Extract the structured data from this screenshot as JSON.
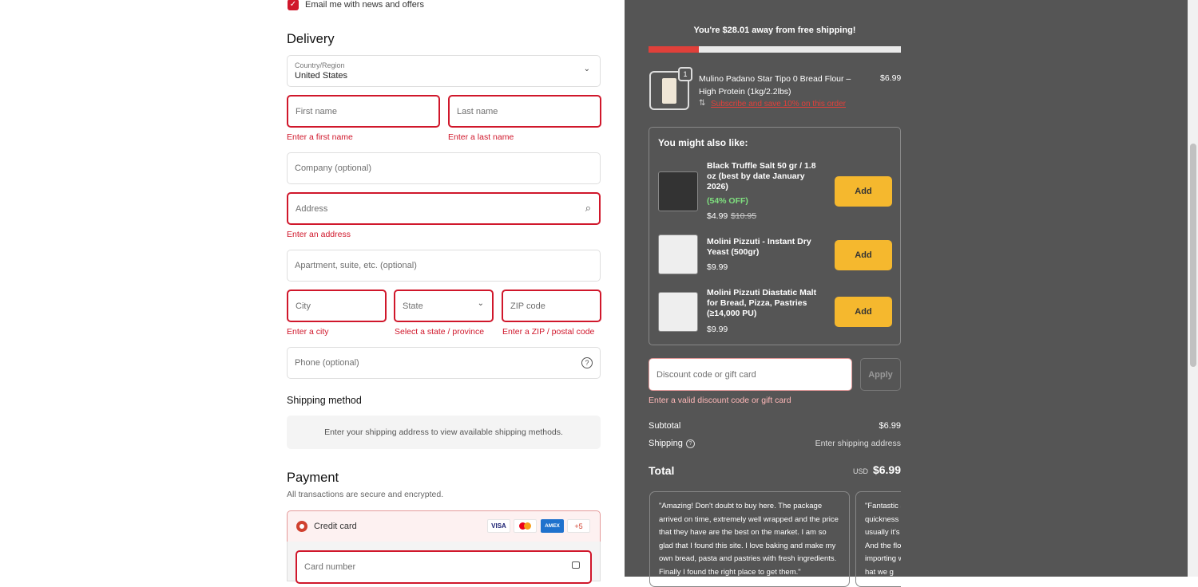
{
  "contact": {
    "email_opt_in_label": "Email me with news and offers",
    "email_opt_in_checked": true
  },
  "delivery": {
    "heading": "Delivery",
    "country_label": "Country/Region",
    "country_value": "United States",
    "first_name_placeholder": "First name",
    "first_name_error": "Enter a first name",
    "last_name_placeholder": "Last name",
    "last_name_error": "Enter a last name",
    "company_placeholder": "Company (optional)",
    "address_placeholder": "Address",
    "address_error": "Enter an address",
    "apartment_placeholder": "Apartment, suite, etc. (optional)",
    "city_placeholder": "City",
    "city_error": "Enter a city",
    "state_placeholder": "State",
    "state_error": "Select a state / province",
    "zip_placeholder": "ZIP code",
    "zip_error": "Enter a ZIP / postal code",
    "phone_placeholder": "Phone (optional)"
  },
  "shipping_method": {
    "heading": "Shipping method",
    "message": "Enter your shipping address to view available shipping methods."
  },
  "payment": {
    "heading": "Payment",
    "subtitle": "All transactions are secure and encrypted.",
    "credit_card_label": "Credit card",
    "card_logos": [
      "VISA",
      "Mastercard",
      "AMEX"
    ],
    "more_cards": "+5",
    "card_number_placeholder": "Card number"
  },
  "summary": {
    "free_shipping_message": "You're $28.01 away from free shipping!",
    "free_shipping_progress_percent": 20,
    "accent_color": "#e0403a",
    "cart_item": {
      "quantity": "1",
      "name": "Mulino Padano Star Tipo 0 Bread Flour – High Protein (1kg/2.2lbs)",
      "price": "$6.99",
      "subscribe_link": "Subscribe and save 10% on this order"
    },
    "upsell": {
      "heading": "You might also like:",
      "add_label": "Add",
      "items": [
        {
          "name": "Black Truffle Salt 50 gr / 1.8 oz (best by date January 2026)",
          "discount": "(54% OFF)",
          "price": "$4.99",
          "compare_price": "$10.95"
        },
        {
          "name": "Molini Pizzuti - Instant Dry Yeast (500gr)",
          "price": "$9.99"
        },
        {
          "name": "Molini Pizzuti Diastatic Malt for Bread, Pizza, Pastries (≥14,000 PU)",
          "price": "$9.99"
        }
      ]
    },
    "discount_placeholder": "Discount code or gift card",
    "apply_label": "Apply",
    "discount_error": "Enter a valid discount code or gift card",
    "subtotal_label": "Subtotal",
    "subtotal_value": "$6.99",
    "shipping_label": "Shipping",
    "shipping_value": "Enter shipping address",
    "total_label": "Total",
    "currency": "USD",
    "total_value": "$6.99",
    "reviews": [
      "\"Amazing! Don't doubt to buy here. The package arrived on time, extremely well wrapped and the price that they have are the best on the market. I am so glad that I found this site. I love baking and make my own bread, pasta and pastries with fresh ingredients. Finally I found the right place to get them.\"",
      "\"Fantastic s quickness usually it's And the flo importing what we g"
    ]
  }
}
